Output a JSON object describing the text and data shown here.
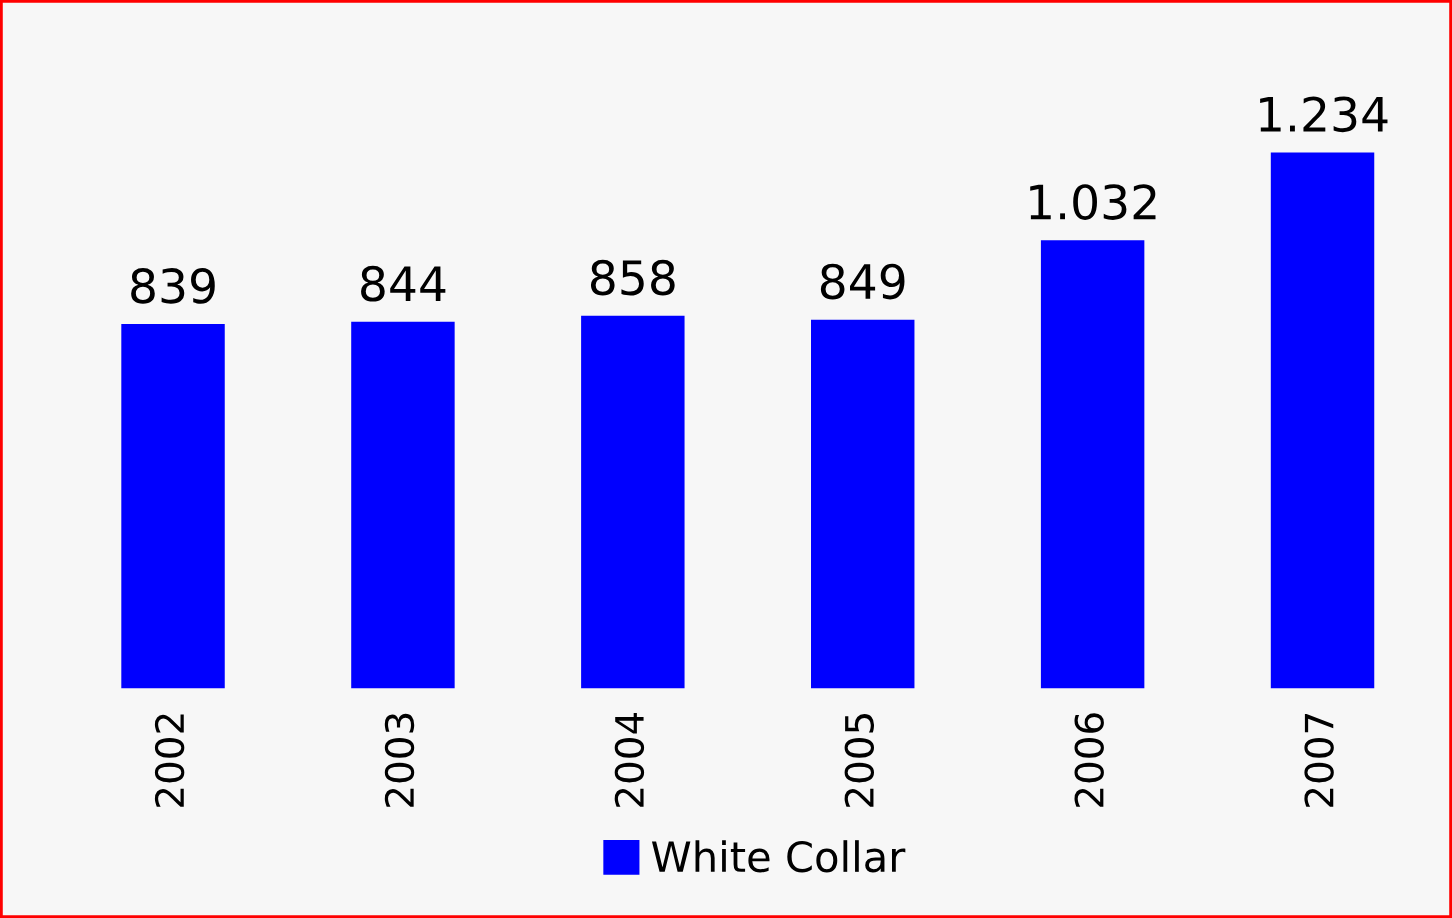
{
  "chart_data": {
    "type": "bar",
    "categories": [
      "2002",
      "2003",
      "2004",
      "2005",
      "2006",
      "2007"
    ],
    "series": [
      {
        "name": "White Collar",
        "color": "#0000ff",
        "values": [
          839,
          844,
          858,
          849,
          1032,
          1234
        ],
        "value_labels": [
          "839",
          "844",
          "858",
          "849",
          "1.032",
          "1.234"
        ]
      }
    ],
    "legend": "bottom"
  }
}
